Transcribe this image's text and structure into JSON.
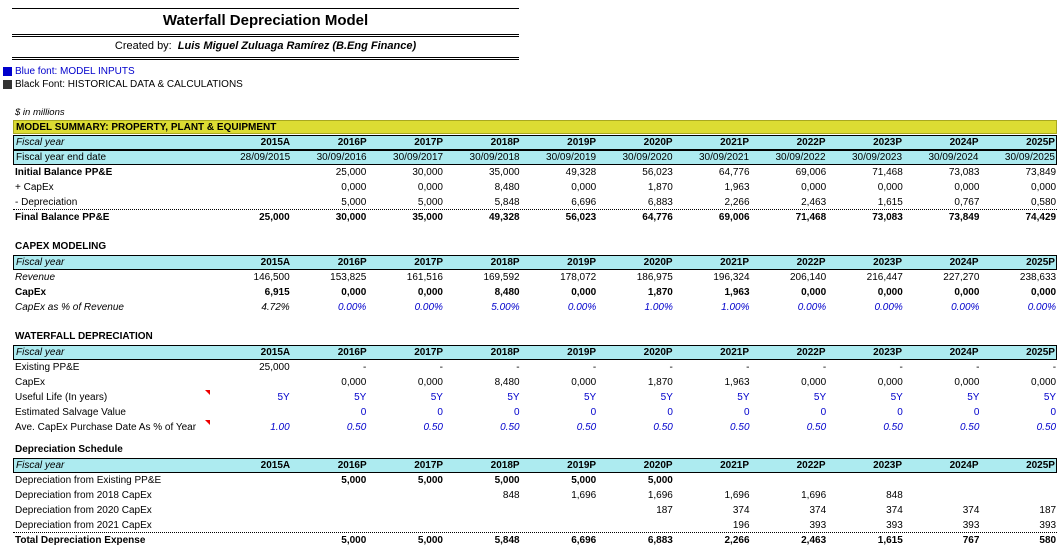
{
  "header": {
    "title": "Waterfall Depreciation Model",
    "created_by_label": "Created by:",
    "author": "Luis Miguel Zuluaga Ramírez (B.Eng Finance)"
  },
  "legend": {
    "blue_label": "Blue font: MODEL INPUTS",
    "black_label": "Black Font: HISTORICAL DATA & CALCULATIONS",
    "blue_color": "#0000CC",
    "black_color": "#333333"
  },
  "units": "$ in millions",
  "summary": {
    "title": "MODEL SUMMARY: PROPERTY, PLANT & EQUIPMENT",
    "rows": [
      {
        "label": "Fiscal year",
        "values": [
          "2015A",
          "2016P",
          "2017P",
          "2018P",
          "2019P",
          "2020P",
          "2021P",
          "2022P",
          "2023P",
          "2024P",
          "2025P"
        ]
      },
      {
        "label": "Fiscal year end date",
        "values": [
          "28/09/2015",
          "30/09/2016",
          "30/09/2017",
          "30/09/2018",
          "30/09/2019",
          "30/09/2020",
          "30/09/2021",
          "30/09/2022",
          "30/09/2023",
          "30/09/2024",
          "30/09/2025"
        ]
      },
      {
        "label": "Initial Balance PP&E",
        "values": [
          "",
          "25,000",
          "30,000",
          "35,000",
          "49,328",
          "56,023",
          "64,776",
          "69,006",
          "71,468",
          "73,083",
          "73,849"
        ]
      },
      {
        "label": "+ CapEx",
        "values": [
          "",
          "0,000",
          "0,000",
          "8,480",
          "0,000",
          "1,870",
          "1,963",
          "0,000",
          "0,000",
          "0,000",
          "0,000"
        ]
      },
      {
        "label": "- Depreciation",
        "values": [
          "",
          "5,000",
          "5,000",
          "5,848",
          "6,696",
          "6,883",
          "2,266",
          "2,463",
          "1,615",
          "0,767",
          "0,580"
        ]
      },
      {
        "label": "Final Balance PP&E",
        "values": [
          "25,000",
          "30,000",
          "35,000",
          "49,328",
          "56,023",
          "64,776",
          "69,006",
          "71,468",
          "73,083",
          "73,849",
          "74,429"
        ]
      }
    ]
  },
  "capex": {
    "title": "CAPEX MODELING",
    "rows": [
      {
        "label": "Fiscal year",
        "values": [
          "2015A",
          "2016P",
          "2017P",
          "2018P",
          "2019P",
          "2020P",
          "2021P",
          "2022P",
          "2023P",
          "2024P",
          "2025P"
        ]
      },
      {
        "label": "Revenue",
        "values": [
          "146,500",
          "153,825",
          "161,516",
          "169,592",
          "178,072",
          "186,975",
          "196,324",
          "206,140",
          "216,447",
          "227,270",
          "238,633"
        ]
      },
      {
        "label": "CapEx",
        "values": [
          "6,915",
          "0,000",
          "0,000",
          "8,480",
          "0,000",
          "1,870",
          "1,963",
          "0,000",
          "0,000",
          "0,000",
          "0,000"
        ]
      },
      {
        "label": "CapEx as % of Revenue",
        "values": [
          "4.72%",
          "0.00%",
          "0.00%",
          "5.00%",
          "0.00%",
          "1.00%",
          "1.00%",
          "0.00%",
          "0.00%",
          "0.00%",
          "0.00%"
        ]
      }
    ]
  },
  "waterfall": {
    "title": "WATERFALL DEPRECIATION",
    "rows": [
      {
        "label": "Fiscal year",
        "values": [
          "2015A",
          "2016P",
          "2017P",
          "2018P",
          "2019P",
          "2020P",
          "2021P",
          "2022P",
          "2023P",
          "2024P",
          "2025P"
        ]
      },
      {
        "label": "Existing PP&E",
        "values": [
          "25,000",
          "-",
          "-",
          "-",
          "-",
          "-",
          "-",
          "-",
          "-",
          "-",
          "-"
        ]
      },
      {
        "label": "CapEx",
        "values": [
          "",
          "0,000",
          "0,000",
          "8,480",
          "0,000",
          "1,870",
          "1,963",
          "0,000",
          "0,000",
          "0,000",
          "0,000"
        ]
      },
      {
        "label": "Useful Life (In years)",
        "values": [
          "5Y",
          "5Y",
          "5Y",
          "5Y",
          "5Y",
          "5Y",
          "5Y",
          "5Y",
          "5Y",
          "5Y",
          "5Y"
        ]
      },
      {
        "label": "Estimated Salvage Value",
        "values": [
          "",
          "0",
          "0",
          "0",
          "0",
          "0",
          "0",
          "0",
          "0",
          "0",
          "0"
        ]
      },
      {
        "label": "Ave. CapEx Purchase Date As % of Year",
        "values": [
          "1.00",
          "0.50",
          "0.50",
          "0.50",
          "0.50",
          "0.50",
          "0.50",
          "0.50",
          "0.50",
          "0.50",
          "0.50"
        ]
      }
    ]
  },
  "schedule": {
    "title": "Depreciation Schedule",
    "rows": [
      {
        "label": "Fiscal year",
        "values": [
          "2015A",
          "2016P",
          "2017P",
          "2018P",
          "2019P",
          "2020P",
          "2021P",
          "2022P",
          "2023P",
          "2024P",
          "2025P"
        ]
      },
      {
        "label": "Depreciation from Existing PP&E",
        "values": [
          "",
          "5,000",
          "5,000",
          "5,000",
          "5,000",
          "5,000",
          "",
          "",
          "",
          "",
          ""
        ]
      },
      {
        "label": "Depreciation from 2018 CapEx",
        "values": [
          "",
          "",
          "",
          "848",
          "1,696",
          "1,696",
          "1,696",
          "1,696",
          "848",
          "",
          ""
        ]
      },
      {
        "label": "Depreciation from 2020 CapEx",
        "values": [
          "",
          "",
          "",
          "",
          "",
          "187",
          "374",
          "374",
          "374",
          "374",
          "187"
        ]
      },
      {
        "label": "Depreciation from 2021 CapEx",
        "values": [
          "",
          "",
          "",
          "",
          "",
          "",
          "196",
          "393",
          "393",
          "393",
          "393"
        ]
      },
      {
        "label": "Total Depreciation Expense",
        "values": [
          "",
          "5,000",
          "5,000",
          "5,848",
          "6,696",
          "6,883",
          "2,266",
          "2,463",
          "1,615",
          "767",
          "580"
        ]
      }
    ]
  }
}
